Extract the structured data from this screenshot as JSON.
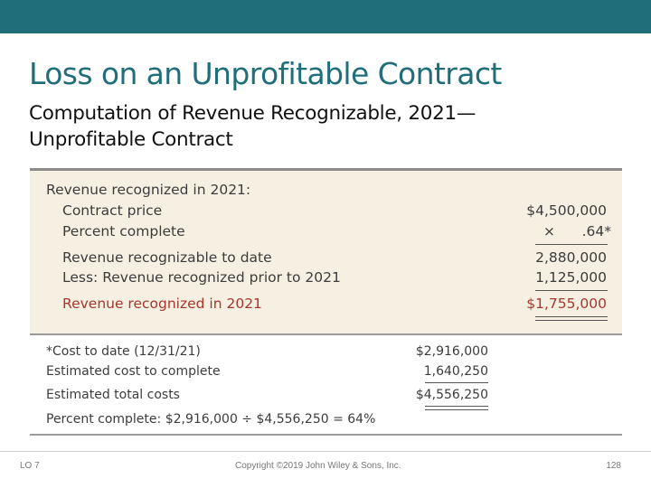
{
  "slide": {
    "title": "Loss on an Unprofitable Contract",
    "subtitle": "Computation of Revenue Recognizable, 2021— Unprofitable Contract"
  },
  "revenue_table": {
    "header": "Revenue recognized in 2021:",
    "contract_price_label": "Contract price",
    "contract_price_value": "$4,500,000",
    "percent_complete_label": "Percent complete",
    "percent_complete_value": "×      .64*",
    "recognizable_label": "Revenue recognizable to date",
    "recognizable_value": "2,880,000",
    "prior_label": "Less: Revenue recognized prior to 2021",
    "prior_value": "1,125,000",
    "recognized_label": "Revenue recognized in 2021",
    "recognized_value": "$1,755,000"
  },
  "footnote_table": {
    "cost_to_date_label": "*Cost to date (12/31/21)",
    "cost_to_date_value": "$2,916,000",
    "estimated_cost_label": "Estimated cost to complete",
    "estimated_cost_value": "1,640,250",
    "total_costs_label": "Estimated total costs",
    "total_costs_value": "$4,556,250",
    "percent_formula": "Percent complete: $2,916,000 ÷ $4,556,250 = 64%"
  },
  "footer": {
    "lo": "LO 7",
    "copyright": "Copyright ©2019 John Wiley & Sons, Inc.",
    "page": "128"
  },
  "colors": {
    "accent": "#1f6e79",
    "panel": "#f5f0e1",
    "highlight": "#a6372c"
  }
}
